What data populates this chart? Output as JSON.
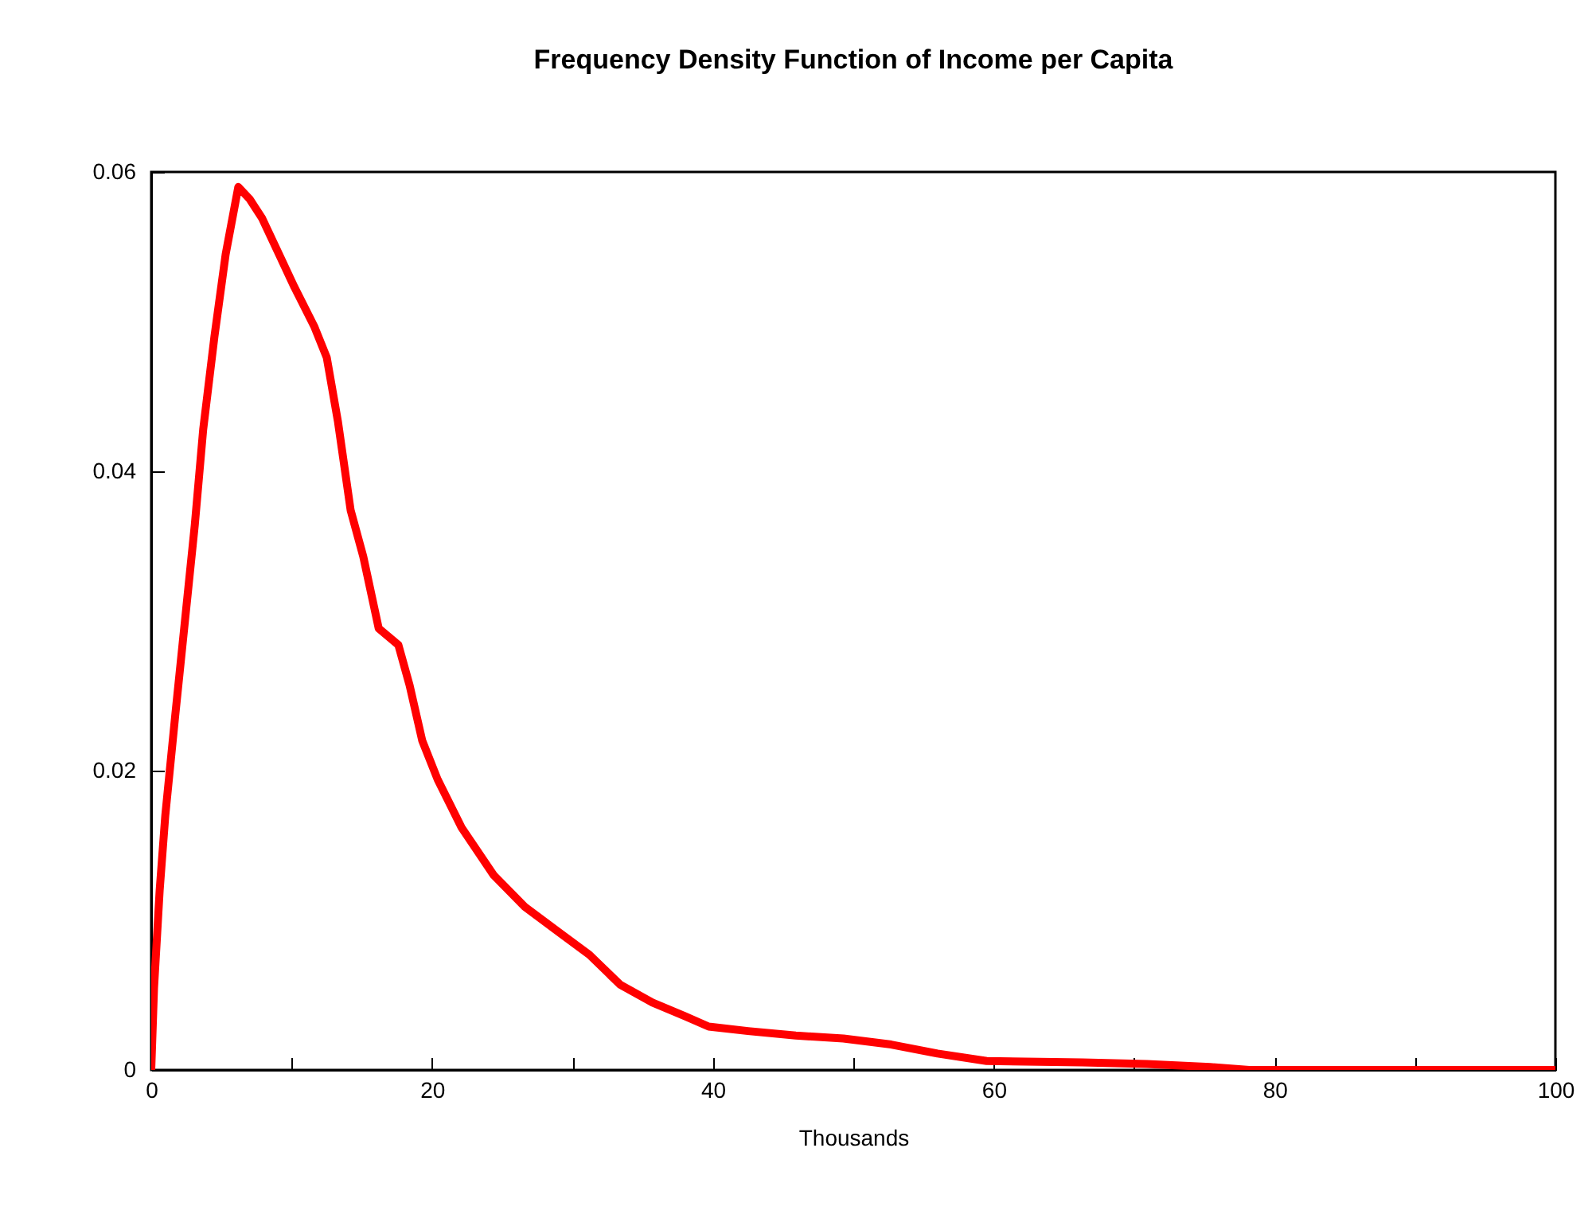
{
  "chart_data": {
    "type": "line",
    "title": "Frequency Density Function of Income per Capita",
    "xlabel": "Thousands",
    "x": [
      0,
      0.2,
      0.6,
      1.0,
      1.7,
      2.4,
      3.1,
      3.7,
      4.5,
      5.3,
      6.2,
      7.0,
      7.9,
      9.1,
      10.2,
      11.6,
      12.5,
      13.3,
      14.2,
      15.1,
      16.2,
      17.6,
      18.4,
      19.3,
      20.4,
      22.1,
      24.4,
      26.6,
      28.9,
      31.2,
      33.4,
      35.7,
      38,
      39.7,
      42.5,
      45.9,
      49.3,
      52.7,
      56,
      59.5,
      66.3,
      70.9,
      75.4,
      78.2,
      100
    ],
    "series": [
      {
        "color": "#ff0000",
        "values": [
          0,
          0.0055,
          0.012,
          0.017,
          0.0236,
          0.03,
          0.0364,
          0.0428,
          0.049,
          0.0545,
          0.059,
          0.0582,
          0.0569,
          0.0545,
          0.0523,
          0.0497,
          0.0476,
          0.0433,
          0.0374,
          0.0343,
          0.0295,
          0.0284,
          0.0257,
          0.022,
          0.0194,
          0.0162,
          0.013,
          0.0109,
          0.0093,
          0.0077,
          0.0057,
          0.0045,
          0.0036,
          0.0029,
          0.0026,
          0.0023,
          0.0021,
          0.0017,
          0.0011,
          0.0006,
          0.0005,
          0.0004,
          0.0002,
          0,
          0
        ]
      }
    ],
    "xlim": [
      0,
      100
    ],
    "xticks": [
      0,
      {
        "value": 10,
        "label": null
      },
      20,
      {
        "value": 30,
        "label": null
      },
      40,
      {
        "value": 50,
        "label": null
      },
      60,
      {
        "value": 70,
        "label": null
      },
      80,
      {
        "value": 90,
        "label": null
      },
      100
    ],
    "ylim": [
      0,
      0.06
    ],
    "yticks": [
      0,
      0.02,
      0.04,
      0.06
    ],
    "grid": false,
    "marker": "none",
    "line_style": "solid"
  }
}
